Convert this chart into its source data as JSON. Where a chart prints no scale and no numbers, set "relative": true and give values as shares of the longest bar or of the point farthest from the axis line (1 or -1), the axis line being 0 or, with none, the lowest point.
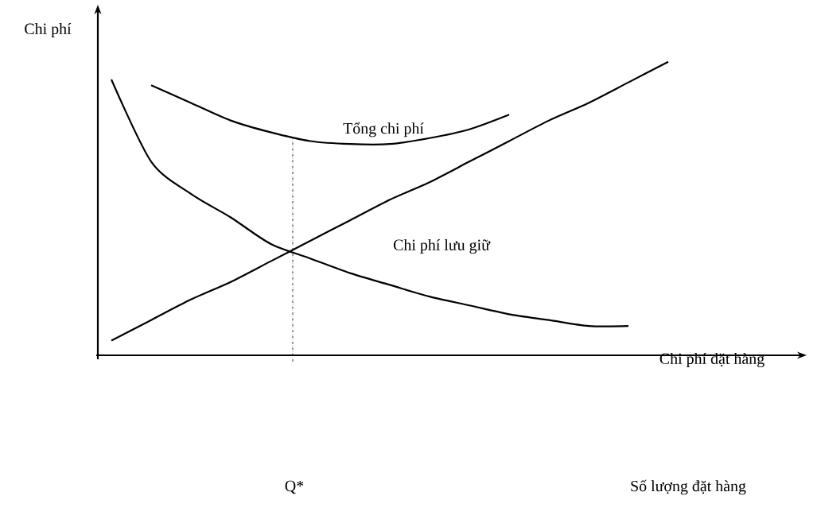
{
  "chart_data": {
    "type": "line",
    "relative": true,
    "ylabel": "Chi phí",
    "marker": "none",
    "line_style": "solid",
    "categories": [
      null,
      null,
      null,
      null,
      null,
      null,
      null,
      null,
      null,
      null,
      null,
      null,
      null,
      null,
      null
    ],
    "series": [
      {
        "name": "Tổng chi phí",
        "color": "#000000",
        "values": [
          null,
          0.92,
          0.86,
          0.8,
          0.76,
          0.73,
          0.72,
          0.72,
          0.74,
          0.77,
          0.82,
          null,
          null,
          null,
          null
        ]
      },
      {
        "color": "#000000",
        "values": [
          0.05,
          0.12,
          0.19,
          0.25,
          0.32,
          0.39,
          0.46,
          0.53,
          0.59,
          0.66,
          0.73,
          0.8,
          0.86,
          0.93,
          1.0
        ]
      },
      {
        "color": "#000000",
        "values": [
          0.94,
          0.66,
          0.55,
          0.47,
          0.38,
          0.33,
          0.28,
          0.24,
          0.2,
          0.17,
          0.14,
          0.12,
          0.1,
          0.1,
          null
        ]
      }
    ],
    "annotations": [
      "Chi phí lưu giữ",
      "Chi phí đặt hàng",
      "Q*",
      "Số lượng đặt hàng"
    ]
  }
}
